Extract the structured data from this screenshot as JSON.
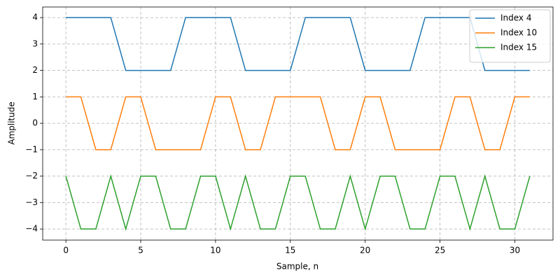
{
  "chart_data": {
    "type": "line",
    "x_label": "Sample, n",
    "y_label": "Amplitude",
    "x": [
      0,
      1,
      2,
      3,
      4,
      5,
      6,
      7,
      8,
      9,
      10,
      11,
      12,
      13,
      14,
      15,
      16,
      17,
      18,
      19,
      20,
      21,
      22,
      23,
      24,
      25,
      26,
      27,
      28,
      29,
      30,
      31
    ],
    "series": [
      {
        "name": "Index 4",
        "color": "#1f77b4",
        "values": [
          4,
          4,
          4,
          4,
          2,
          2,
          2,
          2,
          4,
          4,
          4,
          4,
          2,
          2,
          2,
          2,
          4,
          4,
          4,
          4,
          2,
          2,
          2,
          2,
          4,
          4,
          4,
          4,
          2,
          2,
          2,
          2
        ]
      },
      {
        "name": "Index 10",
        "color": "#ff7f0e",
        "values": [
          1,
          1,
          -1,
          -1,
          1,
          1,
          -1,
          -1,
          -1,
          -1,
          1,
          1,
          -1,
          -1,
          1,
          1,
          1,
          1,
          -1,
          -1,
          1,
          1,
          -1,
          -1,
          -1,
          -1,
          1,
          1,
          -1,
          -1,
          1,
          1
        ]
      },
      {
        "name": "Index 15",
        "color": "#2ca02c",
        "values": [
          -2,
          -4,
          -4,
          -2,
          -4,
          -2,
          -2,
          -4,
          -4,
          -2,
          -2,
          -4,
          -2,
          -4,
          -4,
          -2,
          -2,
          -4,
          -4,
          -2,
          -4,
          -2,
          -2,
          -4,
          -4,
          -2,
          -2,
          -4,
          -2,
          -4,
          -4,
          -2
        ]
      }
    ],
    "xlim": [
      -1.55,
      32.55
    ],
    "ylim": [
      -4.42,
      4.4
    ],
    "xticks": [
      0,
      5,
      10,
      15,
      20,
      25,
      30
    ],
    "yticks": [
      {
        "value": -4,
        "label": "−4"
      },
      {
        "value": -3,
        "label": "−3"
      },
      {
        "value": -2,
        "label": "−2"
      },
      {
        "value": -1,
        "label": "−1"
      },
      0,
      1,
      2,
      3,
      4
    ],
    "grid": true,
    "legend": "upper-right"
  }
}
